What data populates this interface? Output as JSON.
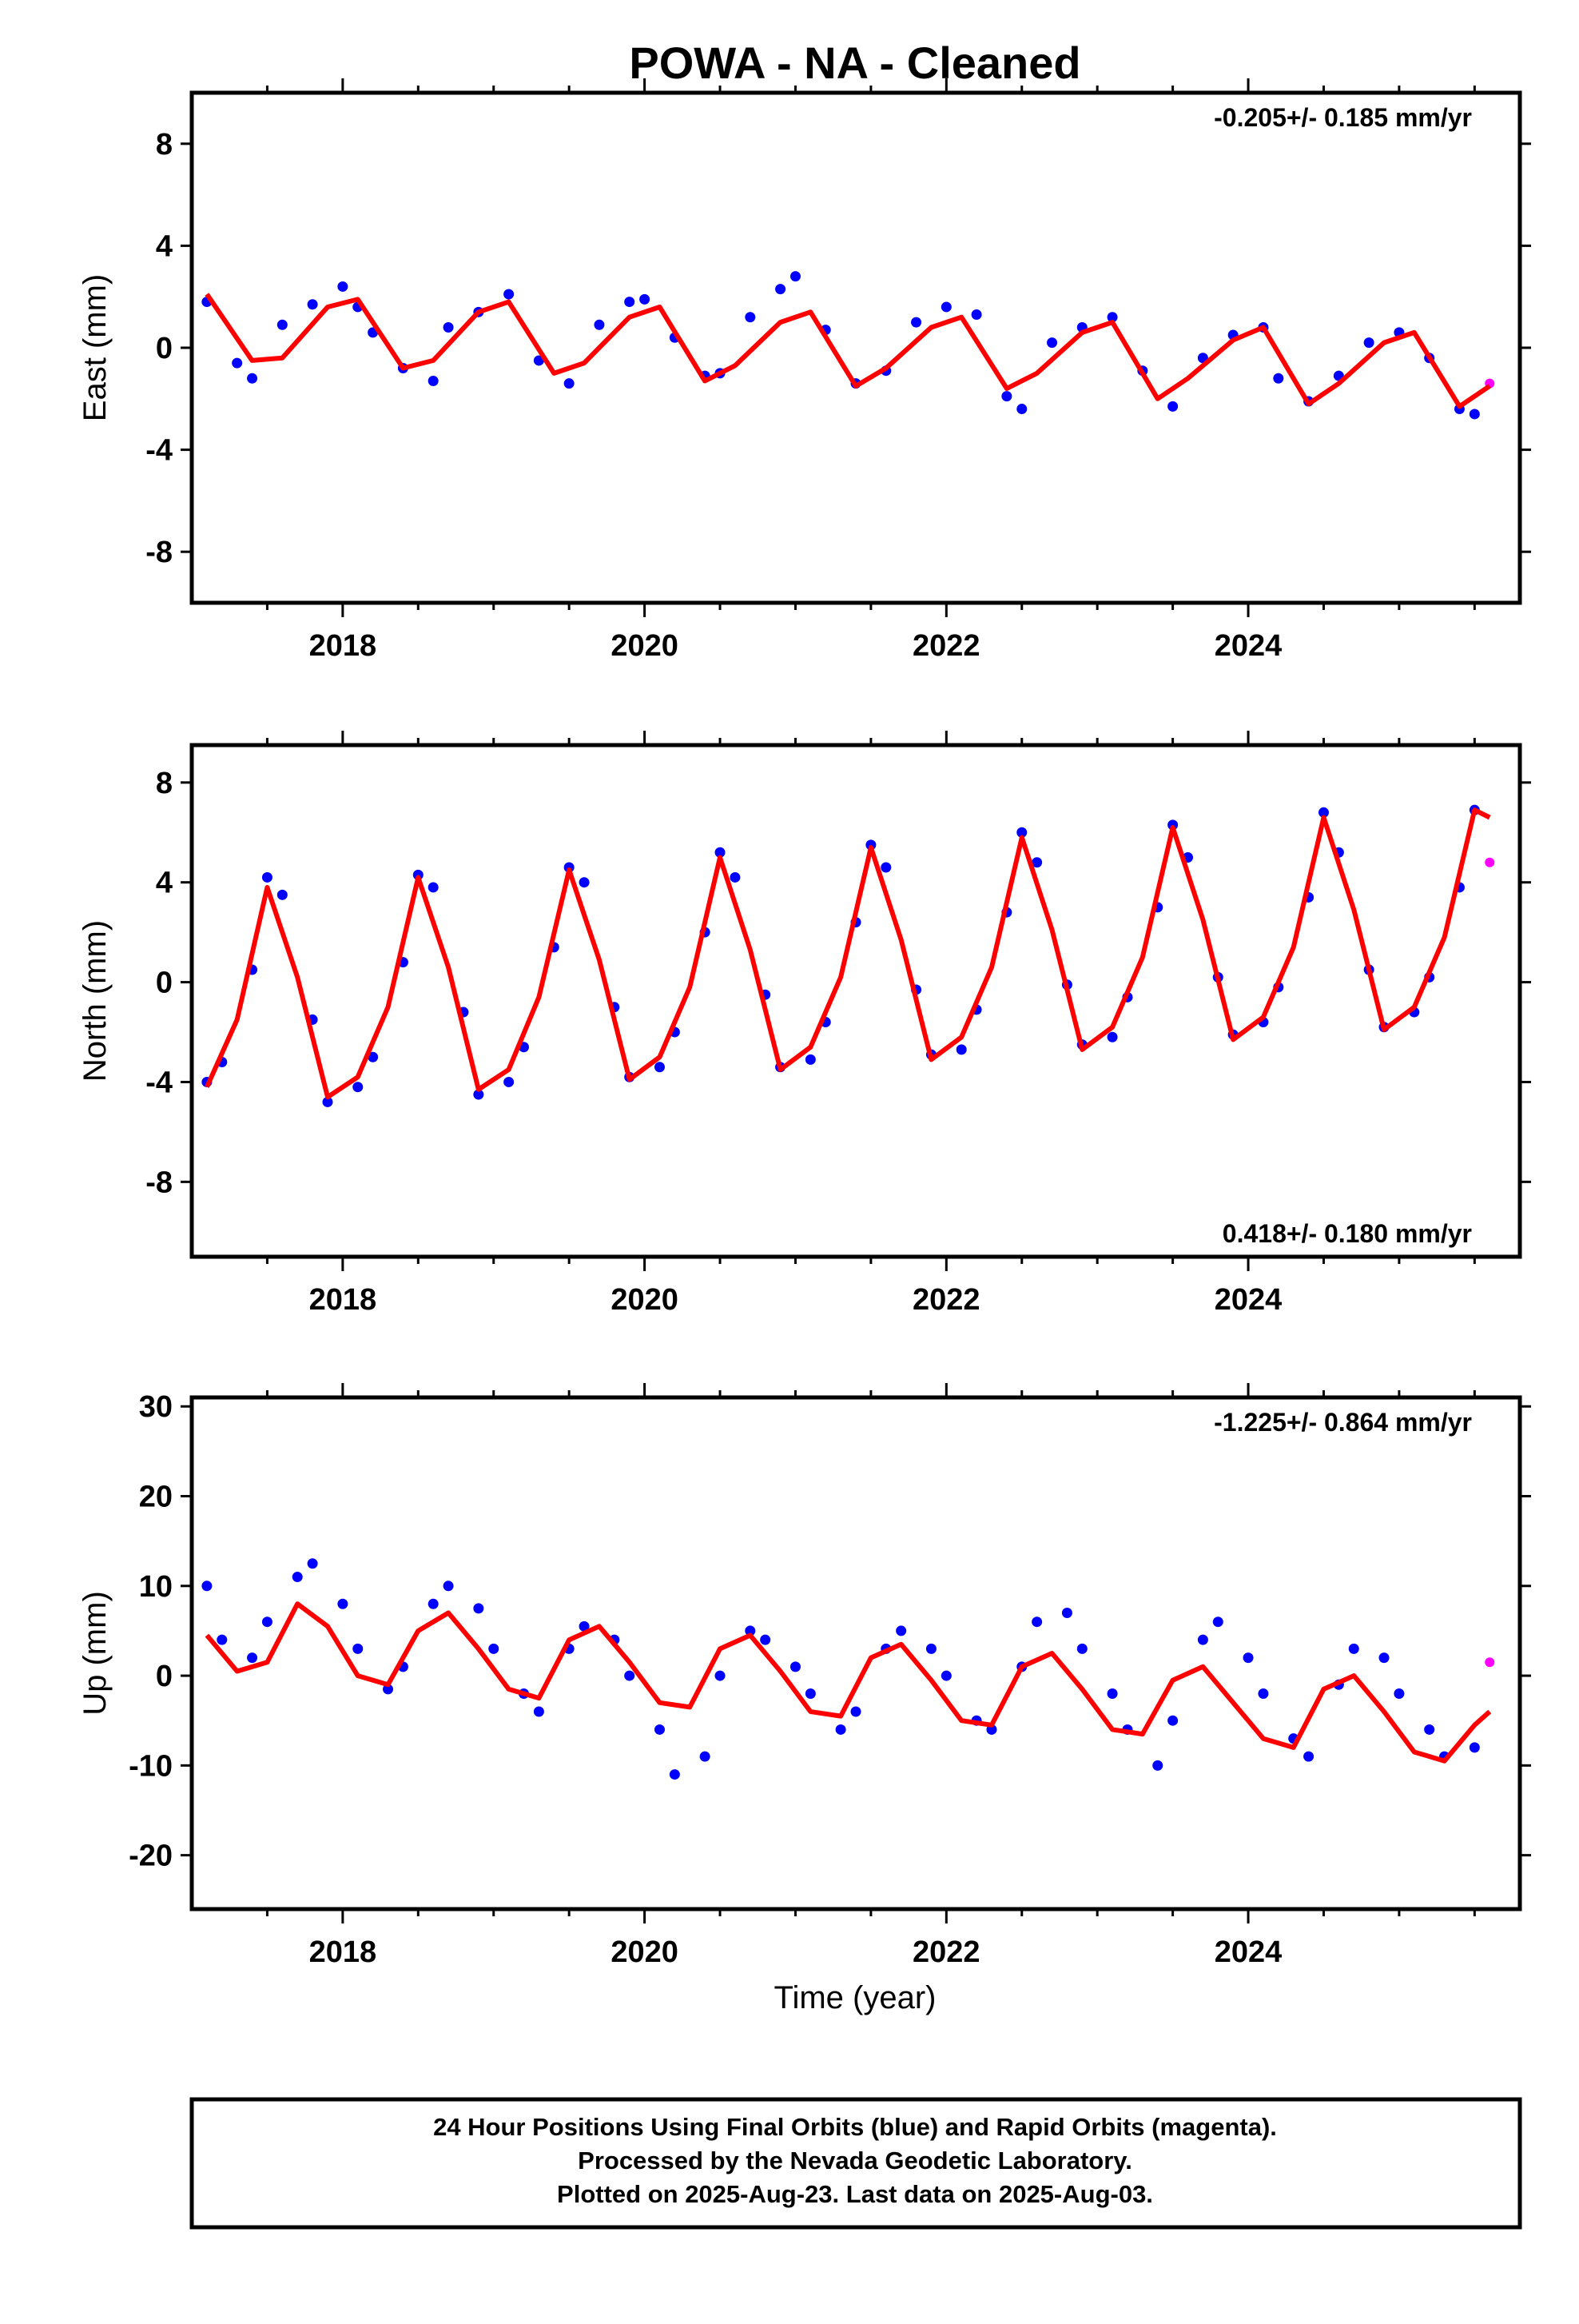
{
  "title": "POWA  - NA - Cleaned",
  "xlabel": "Time (year)",
  "x_ticks": [
    "2018",
    "2020",
    "2022",
    "2024"
  ],
  "footer": {
    "line1": "24 Hour Positions Using Final Orbits (blue) and Rapid Orbits (magenta).",
    "line2": "Processed by the Nevada Geodetic Laboratory.",
    "line3": "Plotted on 2025-Aug-23. Last data on 2025-Aug-03."
  },
  "colors": {
    "final": "#0000ff",
    "rapid": "#ff00ff",
    "model": "#ff0000",
    "frame": "#000000"
  },
  "chart_data": [
    {
      "type": "scatter",
      "ylabel": "East (mm)",
      "rate_text": "-0.205+/- 0.185 mm/yr",
      "rate_position": "top-right",
      "xlim": [
        2017.0,
        2025.8
      ],
      "ylim": [
        -10,
        10
      ],
      "y_ticks": [
        "8",
        "4",
        "0",
        "-4",
        "-8"
      ],
      "y_tick_values": [
        8,
        4,
        0,
        -4,
        -8
      ],
      "grid": false,
      "series": [
        {
          "name": "Final Orbits",
          "x": [
            2017.1,
            2017.3,
            2017.4,
            2017.6,
            2017.8,
            2018.0,
            2018.1,
            2018.2,
            2018.4,
            2018.6,
            2018.7,
            2018.9,
            2019.1,
            2019.3,
            2019.5,
            2019.7,
            2019.9,
            2020.0,
            2020.2,
            2020.4,
            2020.5,
            2020.7,
            2020.9,
            2021.0,
            2021.2,
            2021.4,
            2021.6,
            2021.8,
            2022.0,
            2022.2,
            2022.4,
            2022.5,
            2022.7,
            2022.9,
            2023.1,
            2023.3,
            2023.5,
            2023.7,
            2023.9,
            2024.1,
            2024.2,
            2024.4,
            2024.6,
            2024.8,
            2025.0,
            2025.2,
            2025.4,
            2025.5
          ],
          "y": [
            1.8,
            -0.6,
            -1.2,
            0.9,
            1.7,
            2.4,
            1.6,
            0.6,
            -0.8,
            -1.3,
            0.8,
            1.4,
            2.1,
            -0.5,
            -1.4,
            0.9,
            1.8,
            1.9,
            0.4,
            -1.1,
            -1.0,
            1.2,
            2.3,
            2.8,
            0.7,
            -1.4,
            -0.9,
            1.0,
            1.6,
            1.3,
            -1.9,
            -2.4,
            0.2,
            0.8,
            1.2,
            -0.9,
            -2.3,
            -0.4,
            0.5,
            0.8,
            -1.2,
            -2.1,
            -1.1,
            0.2,
            0.6,
            -0.4,
            -2.4,
            -2.6
          ],
          "color": "#0000ff"
        },
        {
          "name": "Rapid Orbits",
          "x": [
            2025.6
          ],
          "y": [
            -1.4
          ],
          "color": "#ff00ff"
        }
      ],
      "model": {
        "x": [
          2017.1,
          2017.4,
          2017.6,
          2017.9,
          2018.1,
          2018.4,
          2018.6,
          2018.9,
          2019.1,
          2019.4,
          2019.6,
          2019.9,
          2020.1,
          2020.4,
          2020.6,
          2020.9,
          2021.1,
          2021.4,
          2021.6,
          2021.9,
          2022.1,
          2022.4,
          2022.6,
          2022.9,
          2023.1,
          2023.4,
          2023.6,
          2023.9,
          2024.1,
          2024.4,
          2024.6,
          2024.9,
          2025.1,
          2025.4,
          2025.6
        ],
        "y": [
          2.1,
          -0.5,
          -0.4,
          1.6,
          1.9,
          -0.8,
          -0.5,
          1.4,
          1.8,
          -1.0,
          -0.6,
          1.2,
          1.6,
          -1.3,
          -0.7,
          1.0,
          1.4,
          -1.5,
          -0.8,
          0.8,
          1.2,
          -1.6,
          -1.0,
          0.6,
          1.0,
          -2.0,
          -1.2,
          0.3,
          0.8,
          -2.2,
          -1.4,
          0.2,
          0.6,
          -2.3,
          -1.5
        ]
      }
    },
    {
      "type": "scatter",
      "ylabel": "North (mm)",
      "rate_text": "0.418+/- 0.180 mm/yr",
      "rate_position": "bottom-right",
      "xlim": [
        2017.0,
        2025.8
      ],
      "ylim": [
        -11,
        9.5
      ],
      "y_ticks": [
        "8",
        "4",
        "0",
        "-4",
        "-8"
      ],
      "y_tick_values": [
        8,
        4,
        0,
        -4,
        -8
      ],
      "grid": false,
      "series": [
        {
          "name": "Final Orbits",
          "x": [
            2017.1,
            2017.2,
            2017.4,
            2017.5,
            2017.6,
            2017.8,
            2017.9,
            2018.1,
            2018.2,
            2018.4,
            2018.5,
            2018.6,
            2018.8,
            2018.9,
            2019.1,
            2019.2,
            2019.4,
            2019.5,
            2019.6,
            2019.8,
            2019.9,
            2020.1,
            2020.2,
            2020.4,
            2020.5,
            2020.6,
            2020.8,
            2020.9,
            2021.1,
            2021.2,
            2021.4,
            2021.5,
            2021.6,
            2021.8,
            2021.9,
            2022.1,
            2022.2,
            2022.4,
            2022.5,
            2022.6,
            2022.8,
            2022.9,
            2023.1,
            2023.2,
            2023.4,
            2023.5,
            2023.6,
            2023.8,
            2023.9,
            2024.1,
            2024.2,
            2024.4,
            2024.5,
            2024.6,
            2024.8,
            2024.9,
            2025.1,
            2025.2,
            2025.4,
            2025.5
          ],
          "y": [
            -4.0,
            -3.2,
            0.5,
            4.2,
            3.5,
            -1.5,
            -4.8,
            -4.2,
            -3.0,
            0.8,
            4.3,
            3.8,
            -1.2,
            -4.5,
            -4.0,
            -2.6,
            1.4,
            4.6,
            4.0,
            -1.0,
            -3.8,
            -3.4,
            -2.0,
            2.0,
            5.2,
            4.2,
            -0.5,
            -3.4,
            -3.1,
            -1.6,
            2.4,
            5.5,
            4.6,
            -0.3,
            -2.9,
            -2.7,
            -1.1,
            2.8,
            6.0,
            4.8,
            -0.1,
            -2.5,
            -2.2,
            -0.6,
            3.0,
            6.3,
            5.0,
            0.2,
            -2.1,
            -1.6,
            -0.2,
            3.4,
            6.8,
            5.2,
            0.5,
            -1.8,
            -1.2,
            0.2,
            3.8,
            6.9
          ],
          "color": "#0000ff"
        },
        {
          "name": "Rapid Orbits",
          "x": [
            2025.6
          ],
          "y": [
            4.8
          ],
          "color": "#ff00ff"
        }
      ],
      "model": {
        "x": [
          2017.1,
          2017.3,
          2017.5,
          2017.7,
          2017.9,
          2018.1,
          2018.3,
          2018.5,
          2018.7,
          2018.9,
          2019.1,
          2019.3,
          2019.5,
          2019.7,
          2019.9,
          2020.1,
          2020.3,
          2020.5,
          2020.7,
          2020.9,
          2021.1,
          2021.3,
          2021.5,
          2021.7,
          2021.9,
          2022.1,
          2022.3,
          2022.5,
          2022.7,
          2022.9,
          2023.1,
          2023.3,
          2023.5,
          2023.7,
          2023.9,
          2024.1,
          2024.3,
          2024.5,
          2024.7,
          2024.9,
          2025.1,
          2025.3,
          2025.5,
          2025.6
        ],
        "y": [
          -4.2,
          -1.5,
          3.8,
          0.2,
          -4.6,
          -3.8,
          -1.0,
          4.2,
          0.6,
          -4.3,
          -3.5,
          -0.6,
          4.5,
          0.9,
          -3.9,
          -3.0,
          -0.2,
          5.0,
          1.3,
          -3.5,
          -2.6,
          0.2,
          5.4,
          1.7,
          -3.1,
          -2.2,
          0.6,
          5.8,
          2.1,
          -2.7,
          -1.8,
          1.0,
          6.2,
          2.5,
          -2.3,
          -1.4,
          1.4,
          6.6,
          2.9,
          -1.9,
          -1.0,
          1.8,
          6.9,
          6.6
        ]
      }
    },
    {
      "type": "scatter",
      "ylabel": "Up (mm)",
      "rate_text": "-1.225+/- 0.864 mm/yr",
      "rate_position": "top-right",
      "xlim": [
        2017.0,
        2025.8
      ],
      "ylim": [
        -26,
        31
      ],
      "y_ticks": [
        "30",
        "20",
        "10",
        "0",
        "-10",
        "-20"
      ],
      "y_tick_values": [
        30,
        20,
        10,
        0,
        -10,
        -20
      ],
      "grid": false,
      "series": [
        {
          "name": "Final Orbits",
          "x": [
            2017.1,
            2017.2,
            2017.4,
            2017.5,
            2017.7,
            2017.8,
            2018.0,
            2018.1,
            2018.3,
            2018.4,
            2018.6,
            2018.7,
            2018.9,
            2019.0,
            2019.2,
            2019.3,
            2019.5,
            2019.6,
            2019.8,
            2019.9,
            2020.1,
            2020.2,
            2020.4,
            2020.5,
            2020.7,
            2020.8,
            2021.0,
            2021.1,
            2021.3,
            2021.4,
            2021.6,
            2021.7,
            2021.9,
            2022.0,
            2022.2,
            2022.3,
            2022.5,
            2022.6,
            2022.8,
            2022.9,
            2023.1,
            2023.2,
            2023.4,
            2023.5,
            2023.7,
            2023.8,
            2024.0,
            2024.1,
            2024.3,
            2024.4,
            2024.6,
            2024.7,
            2024.9,
            2025.0,
            2025.2,
            2025.3,
            2025.5
          ],
          "y": [
            10.0,
            4.0,
            2.0,
            6.0,
            11.0,
            12.5,
            8.0,
            3.0,
            -1.5,
            1.0,
            8.0,
            10.0,
            7.5,
            3.0,
            -2.0,
            -4.0,
            3.0,
            5.5,
            4.0,
            0.0,
            -6.0,
            -11.0,
            -9.0,
            0.0,
            5.0,
            4.0,
            1.0,
            -2.0,
            -6.0,
            -4.0,
            3.0,
            5.0,
            3.0,
            0.0,
            -5.0,
            -6.0,
            1.0,
            6.0,
            7.0,
            3.0,
            -2.0,
            -6.0,
            -10.0,
            -5.0,
            4.0,
            6.0,
            2.0,
            -2.0,
            -7.0,
            -9.0,
            -1.0,
            3.0,
            2.0,
            -2.0,
            -6.0,
            -9.0,
            -8.0
          ],
          "color": "#0000ff"
        },
        {
          "name": "Rapid Orbits",
          "x": [
            2025.6
          ],
          "y": [
            1.5
          ],
          "color": "#ff00ff"
        }
      ],
      "model": {
        "x": [
          2017.1,
          2017.3,
          2017.5,
          2017.7,
          2017.9,
          2018.1,
          2018.3,
          2018.5,
          2018.7,
          2018.9,
          2019.1,
          2019.3,
          2019.5,
          2019.7,
          2019.9,
          2020.1,
          2020.3,
          2020.5,
          2020.7,
          2020.9,
          2021.1,
          2021.3,
          2021.5,
          2021.7,
          2021.9,
          2022.1,
          2022.3,
          2022.5,
          2022.7,
          2022.9,
          2023.1,
          2023.3,
          2023.5,
          2023.7,
          2023.9,
          2024.1,
          2024.3,
          2024.5,
          2024.7,
          2024.9,
          2025.1,
          2025.3,
          2025.5,
          2025.6
        ],
        "y": [
          4.5,
          0.5,
          1.5,
          8.0,
          5.5,
          0.0,
          -1.0,
          5.0,
          7.0,
          3.0,
          -1.5,
          -2.5,
          4.0,
          5.5,
          1.5,
          -3.0,
          -3.5,
          3.0,
          4.5,
          0.5,
          -4.0,
          -4.5,
          2.0,
          3.5,
          -0.5,
          -5.0,
          -5.5,
          1.0,
          2.5,
          -1.5,
          -6.0,
          -6.5,
          -0.5,
          1.0,
          -3.0,
          -7.0,
          -8.0,
          -1.5,
          0.0,
          -4.0,
          -8.5,
          -9.5,
          -5.5,
          -4.0
        ]
      }
    }
  ]
}
